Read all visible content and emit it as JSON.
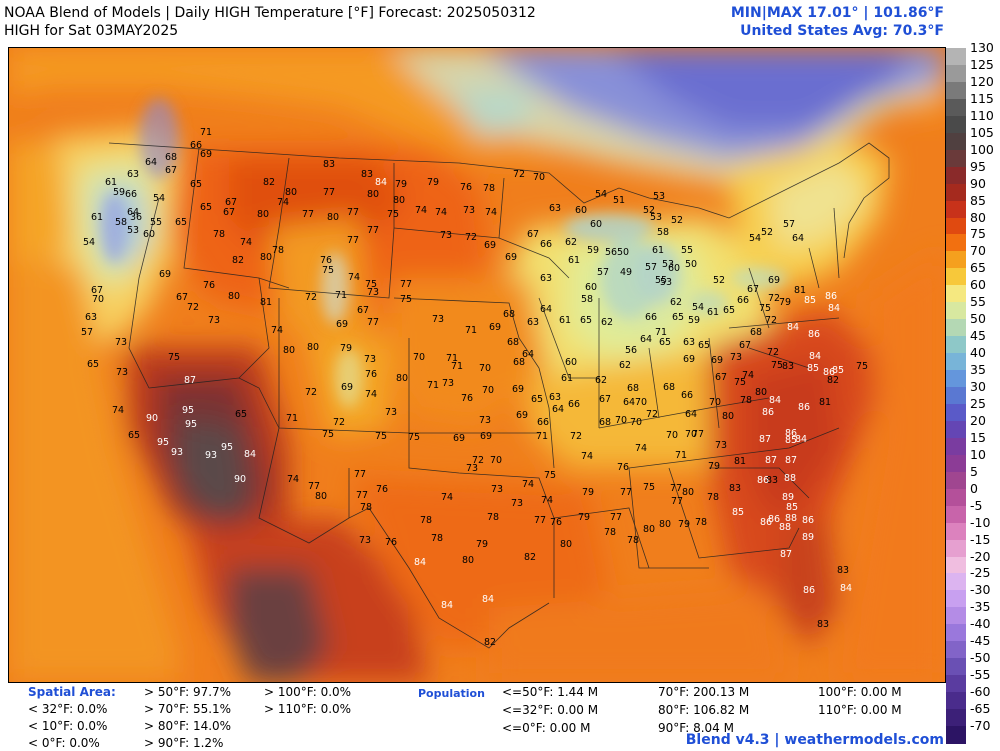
{
  "header": {
    "title_line1": "NOAA Blend of Models | Daily HIGH Temperature [°F] Forecast: 2025050312",
    "title_line2": "HIGH for Sat 03MAY2025",
    "minmax": "MIN|MAX 17.01° | 101.86°F",
    "us_avg": "United States Avg: 70.3°F"
  },
  "colorbar": {
    "labels": [
      "130",
      "125",
      "120",
      "115",
      "110",
      "105",
      "100",
      "95",
      "90",
      "85",
      "80",
      "75",
      "70",
      "65",
      "60",
      "55",
      "50",
      "45",
      "40",
      "35",
      "30",
      "25",
      "20",
      "15",
      "10",
      "5",
      "0",
      "-5",
      "-10",
      "-15",
      "-20",
      "-25",
      "-30",
      "-35",
      "-40",
      "-45",
      "-50",
      "-55",
      "-60",
      "-65",
      "-70"
    ],
    "colors": [
      "#b4b4b4",
      "#9a9a9a",
      "#7a7a7a",
      "#5a5a5a",
      "#4a4a4a",
      "#504040",
      "#6a3a3a",
      "#8a2a2a",
      "#a52a1e",
      "#c8321a",
      "#e04a10",
      "#f27010",
      "#f5a01e",
      "#f7c83a",
      "#f5e880",
      "#d8e8a0",
      "#b4d8b4",
      "#8ec8c8",
      "#78b4d8",
      "#6496dc",
      "#5a78d2",
      "#5a5ac8",
      "#6446b4",
      "#7a3ca0",
      "#8c3c96",
      "#a04690",
      "#b4509a",
      "#c864aa",
      "#dc82be",
      "#e6a0d0",
      "#f0bee0",
      "#dcb4f0",
      "#c8a0f0",
      "#b48ce6",
      "#9a78dc",
      "#8264c8",
      "#6a50b4",
      "#5a3ca0",
      "#4a2c8c",
      "#3c2078",
      "#2c1464"
    ]
  },
  "stats": {
    "spatial_area_label": "Spatial Area:",
    "spatial": [
      [
        "> 50°F: 97.7%",
        "> 100°F: 0.0%"
      ],
      [
        "< 32°F: 0.0%",
        "> 70°F: 55.1%",
        "> 110°F: 0.0%"
      ],
      [
        "< 10°F: 0.0%",
        "> 80°F: 14.0%"
      ],
      [
        "< 0°F: 0.0%",
        "> 90°F: 1.2%"
      ]
    ],
    "population_label": "Population",
    "population": [
      [
        "<=50°F: 1.44 M",
        "70°F: 200.13 M",
        "100°F: 0.00 M"
      ],
      [
        "<=32°F: 0.00 M",
        "80°F: 106.82 M",
        "110°F: 0.00 M"
      ],
      [
        "<=0°F: 0.00 M",
        "90°F: 8.04 M"
      ]
    ]
  },
  "footer": "Blend v4.3 | weathermodels.com",
  "map_values": [
    [
      "71",
      205,
      130
    ],
    [
      "66",
      195,
      143
    ],
    [
      "69",
      205,
      152
    ],
    [
      "68",
      170,
      155
    ],
    [
      "64",
      150,
      160
    ],
    [
      "67",
      170,
      168
    ],
    [
      "63",
      132,
      172
    ],
    [
      "61",
      110,
      180
    ],
    [
      "59",
      118,
      190
    ],
    [
      "66",
      130,
      192
    ],
    [
      "54",
      158,
      196
    ],
    [
      "65",
      195,
      182
    ],
    [
      "67",
      230,
      200
    ],
    [
      "55",
      155,
      220
    ],
    [
      "64",
      132,
      210
    ],
    [
      "58",
      120,
      220
    ],
    [
      "36",
      135,
      215
    ],
    [
      "53",
      132,
      228
    ],
    [
      "54",
      88,
      240
    ],
    [
      "61",
      96,
      215
    ],
    [
      "60",
      148,
      232
    ],
    [
      "65",
      180,
      220
    ],
    [
      "65",
      205,
      205
    ],
    [
      "67",
      228,
      210
    ],
    [
      "82",
      268,
      180
    ],
    [
      "80",
      290,
      190
    ],
    [
      "77",
      328,
      190
    ],
    [
      "83",
      328,
      162
    ],
    [
      "83",
      366,
      172
    ],
    [
      "84",
      380,
      180
    ],
    [
      "79",
      400,
      182
    ],
    [
      "80",
      372,
      192
    ],
    [
      "80",
      398,
      198
    ],
    [
      "75",
      392,
      212
    ],
    [
      "74",
      420,
      208
    ],
    [
      "74",
      440,
      210
    ],
    [
      "73",
      468,
      208
    ],
    [
      "74",
      490,
      210
    ],
    [
      "76",
      465,
      185
    ],
    [
      "78",
      488,
      186
    ],
    [
      "72",
      518,
      172
    ],
    [
      "70",
      538,
      175
    ],
    [
      "79",
      432,
      180
    ],
    [
      "80",
      262,
      212
    ],
    [
      "74",
      282,
      200
    ],
    [
      "78",
      218,
      232
    ],
    [
      "74",
      245,
      240
    ],
    [
      "80",
      265,
      255
    ],
    [
      "82",
      237,
      258
    ],
    [
      "78",
      277,
      248
    ],
    [
      "77",
      307,
      212
    ],
    [
      "80",
      332,
      215
    ],
    [
      "77",
      352,
      210
    ],
    [
      "77",
      372,
      228
    ],
    [
      "77",
      352,
      238
    ],
    [
      "76",
      325,
      258
    ],
    [
      "75",
      327,
      268
    ],
    [
      "74",
      353,
      275
    ],
    [
      "75",
      370,
      282
    ],
    [
      "73",
      445,
      233
    ],
    [
      "72",
      470,
      235
    ],
    [
      "69",
      489,
      243
    ],
    [
      "69",
      510,
      255
    ],
    [
      "67",
      532,
      232
    ],
    [
      "66",
      545,
      242
    ],
    [
      "62",
      570,
      240
    ],
    [
      "63",
      554,
      206
    ],
    [
      "60",
      580,
      208
    ],
    [
      "60",
      595,
      222
    ],
    [
      "59",
      592,
      248
    ],
    [
      "56",
      610,
      250
    ],
    [
      "50",
      622,
      250
    ],
    [
      "57",
      602,
      270
    ],
    [
      "61",
      573,
      258
    ],
    [
      "61",
      657,
      248
    ],
    [
      "60",
      673,
      266
    ],
    [
      "55",
      686,
      248
    ],
    [
      "58",
      662,
      230
    ],
    [
      "54",
      600,
      192
    ],
    [
      "51",
      618,
      198
    ],
    [
      "53",
      658,
      194
    ],
    [
      "52",
      648,
      208
    ],
    [
      "53",
      655,
      215
    ],
    [
      "52",
      676,
      218
    ],
    [
      "49",
      625,
      270
    ],
    [
      "57",
      650,
      265
    ],
    [
      "53",
      667,
      262
    ],
    [
      "50",
      690,
      262
    ],
    [
      "52",
      718,
      278
    ],
    [
      "54",
      754,
      236
    ],
    [
      "52",
      766,
      230
    ],
    [
      "57",
      788,
      222
    ],
    [
      "64",
      797,
      236
    ],
    [
      "69",
      164,
      272
    ],
    [
      "76",
      208,
      283
    ],
    [
      "80",
      233,
      294
    ],
    [
      "81",
      265,
      300
    ],
    [
      "72",
      310,
      295
    ],
    [
      "71",
      340,
      293
    ],
    [
      "73",
      372,
      290
    ],
    [
      "67",
      362,
      308
    ],
    [
      "77",
      372,
      320
    ],
    [
      "75",
      405,
      297
    ],
    [
      "77",
      405,
      282
    ],
    [
      "73",
      437,
      317
    ],
    [
      "71",
      470,
      328
    ],
    [
      "69",
      494,
      325
    ],
    [
      "68",
      508,
      312
    ],
    [
      "63",
      545,
      276
    ],
    [
      "64",
      545,
      307
    ],
    [
      "61",
      564,
      318
    ],
    [
      "58",
      586,
      297
    ],
    [
      "60",
      590,
      285
    ],
    [
      "62",
      606,
      320
    ],
    [
      "65",
      585,
      318
    ],
    [
      "63",
      532,
      320
    ],
    [
      "53",
      665,
      280
    ],
    [
      "55",
      660,
      278
    ],
    [
      "62",
      675,
      300
    ],
    [
      "66",
      650,
      315
    ],
    [
      "71",
      660,
      330
    ],
    [
      "65",
      677,
      315
    ],
    [
      "59",
      693,
      318
    ],
    [
      "54",
      697,
      305
    ],
    [
      "61",
      712,
      310
    ],
    [
      "65",
      728,
      308
    ],
    [
      "66",
      742,
      298
    ],
    [
      "67",
      752,
      287
    ],
    [
      "69",
      773,
      278
    ],
    [
      "72",
      773,
      296
    ],
    [
      "75",
      764,
      306
    ],
    [
      "81",
      799,
      288
    ],
    [
      "79",
      784,
      300
    ],
    [
      "72",
      770,
      318
    ],
    [
      "68",
      755,
      330
    ],
    [
      "67",
      744,
      343
    ],
    [
      "73",
      735,
      355
    ],
    [
      "72",
      772,
      350
    ],
    [
      "75",
      776,
      363
    ],
    [
      "84",
      792,
      325
    ],
    [
      "86",
      813,
      332
    ],
    [
      "85",
      809,
      298
    ],
    [
      "86",
      830,
      294
    ],
    [
      "84",
      833,
      306
    ],
    [
      "67",
      96,
      288
    ],
    [
      "70",
      97,
      297
    ],
    [
      "73",
      120,
      340
    ],
    [
      "63",
      90,
      315
    ],
    [
      "57",
      86,
      330
    ],
    [
      "65",
      92,
      362
    ],
    [
      "73",
      121,
      370
    ],
    [
      "67",
      181,
      295
    ],
    [
      "73",
      213,
      318
    ],
    [
      "72",
      192,
      305
    ],
    [
      "74",
      276,
      328
    ],
    [
      "80",
      288,
      348
    ],
    [
      "80",
      312,
      345
    ],
    [
      "69",
      341,
      322
    ],
    [
      "79",
      345,
      346
    ],
    [
      "73",
      369,
      357
    ],
    [
      "76",
      370,
      372
    ],
    [
      "80",
      401,
      376
    ],
    [
      "70",
      418,
      355
    ],
    [
      "71",
      451,
      356
    ],
    [
      "71",
      456,
      364
    ],
    [
      "70",
      484,
      366
    ],
    [
      "69",
      517,
      387
    ],
    [
      "68",
      512,
      340
    ],
    [
      "68",
      518,
      360
    ],
    [
      "64",
      527,
      352
    ],
    [
      "60",
      570,
      360
    ],
    [
      "61",
      566,
      376
    ],
    [
      "62",
      600,
      378
    ],
    [
      "62",
      624,
      363
    ],
    [
      "56",
      630,
      348
    ],
    [
      "64",
      645,
      337
    ],
    [
      "65",
      664,
      340
    ],
    [
      "63",
      688,
      340
    ],
    [
      "67",
      720,
      375
    ],
    [
      "69",
      716,
      358
    ],
    [
      "65",
      703,
      343
    ],
    [
      "69",
      688,
      357
    ],
    [
      "74",
      747,
      373
    ],
    [
      "80",
      760,
      390
    ],
    [
      "84",
      814,
      354
    ],
    [
      "83",
      787,
      364
    ],
    [
      "85",
      812,
      366
    ],
    [
      "86",
      828,
      370
    ],
    [
      "85",
      837,
      368
    ],
    [
      "82",
      832,
      378
    ],
    [
      "75",
      861,
      364
    ],
    [
      "75",
      173,
      355
    ],
    [
      "87",
      189,
      378
    ],
    [
      "95",
      187,
      408
    ],
    [
      "95",
      190,
      422
    ],
    [
      "90",
      151,
      416
    ],
    [
      "95",
      162,
      440
    ],
    [
      "93",
      176,
      450
    ],
    [
      "95",
      226,
      445
    ],
    [
      "93",
      210,
      453
    ],
    [
      "84",
      249,
      452
    ],
    [
      "90",
      239,
      477
    ],
    [
      "74",
      117,
      408
    ],
    [
      "65",
      133,
      433
    ],
    [
      "65",
      240,
      412
    ],
    [
      "71",
      291,
      416
    ],
    [
      "72",
      338,
      420
    ],
    [
      "72",
      310,
      390
    ],
    [
      "69",
      346,
      385
    ],
    [
      "74",
      370,
      392
    ],
    [
      "75",
      327,
      432
    ],
    [
      "75",
      380,
      434
    ],
    [
      "73",
      390,
      410
    ],
    [
      "75",
      413,
      435
    ],
    [
      "71",
      432,
      383
    ],
    [
      "73",
      447,
      381
    ],
    [
      "76",
      466,
      396
    ],
    [
      "70",
      487,
      388
    ],
    [
      "65",
      536,
      397
    ],
    [
      "63",
      554,
      395
    ],
    [
      "64",
      557,
      407
    ],
    [
      "66",
      573,
      402
    ],
    [
      "67",
      604,
      397
    ],
    [
      "64",
      628,
      400
    ],
    [
      "68",
      632,
      386
    ],
    [
      "70",
      640,
      400
    ],
    [
      "68",
      668,
      385
    ],
    [
      "72",
      651,
      412
    ],
    [
      "66",
      686,
      393
    ],
    [
      "64",
      690,
      412
    ],
    [
      "70",
      714,
      400
    ],
    [
      "75",
      739,
      380
    ],
    [
      "78",
      745,
      398
    ],
    [
      "86",
      767,
      410
    ],
    [
      "80",
      727,
      414
    ],
    [
      "84",
      774,
      398
    ],
    [
      "81",
      824,
      400
    ],
    [
      "86",
      803,
      405
    ],
    [
      "73",
      484,
      418
    ],
    [
      "69",
      521,
      413
    ],
    [
      "66",
      542,
      420
    ],
    [
      "69",
      458,
      436
    ],
    [
      "69",
      485,
      434
    ],
    [
      "71",
      541,
      434
    ],
    [
      "72",
      575,
      434
    ],
    [
      "68",
      604,
      420
    ],
    [
      "70",
      620,
      418
    ],
    [
      "70",
      635,
      420
    ],
    [
      "74",
      640,
      446
    ],
    [
      "76",
      622,
      465
    ],
    [
      "71",
      680,
      453
    ],
    [
      "70",
      671,
      433
    ],
    [
      "70",
      690,
      432
    ],
    [
      "73",
      720,
      443
    ],
    [
      "77",
      697,
      432
    ],
    [
      "87",
      764,
      437
    ],
    [
      "85",
      790,
      438
    ],
    [
      "86",
      790,
      431
    ],
    [
      "84",
      800,
      437
    ],
    [
      "81",
      739,
      459
    ],
    [
      "87",
      770,
      458
    ],
    [
      "87",
      790,
      458
    ],
    [
      "72",
      477,
      458
    ],
    [
      "73",
      471,
      466
    ],
    [
      "70",
      495,
      458
    ],
    [
      "74",
      586,
      454
    ],
    [
      "77",
      359,
      472
    ],
    [
      "77",
      313,
      484
    ],
    [
      "77",
      361,
      493
    ],
    [
      "80",
      320,
      494
    ],
    [
      "76",
      381,
      487
    ],
    [
      "74",
      292,
      477
    ],
    [
      "75",
      549,
      473
    ],
    [
      "74",
      527,
      482
    ],
    [
      "74",
      446,
      495
    ],
    [
      "73",
      496,
      487
    ],
    [
      "79",
      587,
      490
    ],
    [
      "77",
      625,
      490
    ],
    [
      "75",
      648,
      485
    ],
    [
      "77",
      675,
      486
    ],
    [
      "79",
      713,
      464
    ],
    [
      "80",
      687,
      490
    ],
    [
      "78",
      712,
      495
    ],
    [
      "83",
      734,
      486
    ],
    [
      "83",
      771,
      478
    ],
    [
      "86",
      762,
      478
    ],
    [
      "88",
      789,
      476
    ],
    [
      "89",
      787,
      495
    ],
    [
      "85",
      791,
      505
    ],
    [
      "86",
      773,
      517
    ],
    [
      "88",
      790,
      516
    ],
    [
      "86",
      807,
      518
    ],
    [
      "89",
      807,
      535
    ],
    [
      "85",
      737,
      510
    ],
    [
      "86",
      765,
      520
    ],
    [
      "88",
      784,
      525
    ],
    [
      "78",
      700,
      520
    ],
    [
      "77",
      676,
      499
    ],
    [
      "74",
      546,
      498
    ],
    [
      "73",
      516,
      501
    ],
    [
      "77",
      539,
      518
    ],
    [
      "78",
      365,
      505
    ],
    [
      "78",
      425,
      518
    ],
    [
      "78",
      492,
      515
    ],
    [
      "76",
      555,
      520
    ],
    [
      "79",
      583,
      515
    ],
    [
      "77",
      615,
      515
    ],
    [
      "78",
      609,
      530
    ],
    [
      "78",
      632,
      538
    ],
    [
      "80",
      648,
      527
    ],
    [
      "80",
      664,
      522
    ],
    [
      "79",
      683,
      522
    ],
    [
      "76",
      390,
      540
    ],
    [
      "73",
      364,
      538
    ],
    [
      "80",
      565,
      542
    ],
    [
      "82",
      529,
      555
    ],
    [
      "79",
      481,
      542
    ],
    [
      "78",
      436,
      536
    ],
    [
      "80",
      467,
      558
    ],
    [
      "84",
      419,
      560
    ],
    [
      "87",
      785,
      552
    ],
    [
      "83",
      842,
      568
    ],
    [
      "86",
      808,
      588
    ],
    [
      "84",
      845,
      586
    ],
    [
      "84",
      446,
      603
    ],
    [
      "84",
      487,
      597
    ],
    [
      "82",
      489,
      640
    ],
    [
      "83",
      822,
      622
    ]
  ]
}
